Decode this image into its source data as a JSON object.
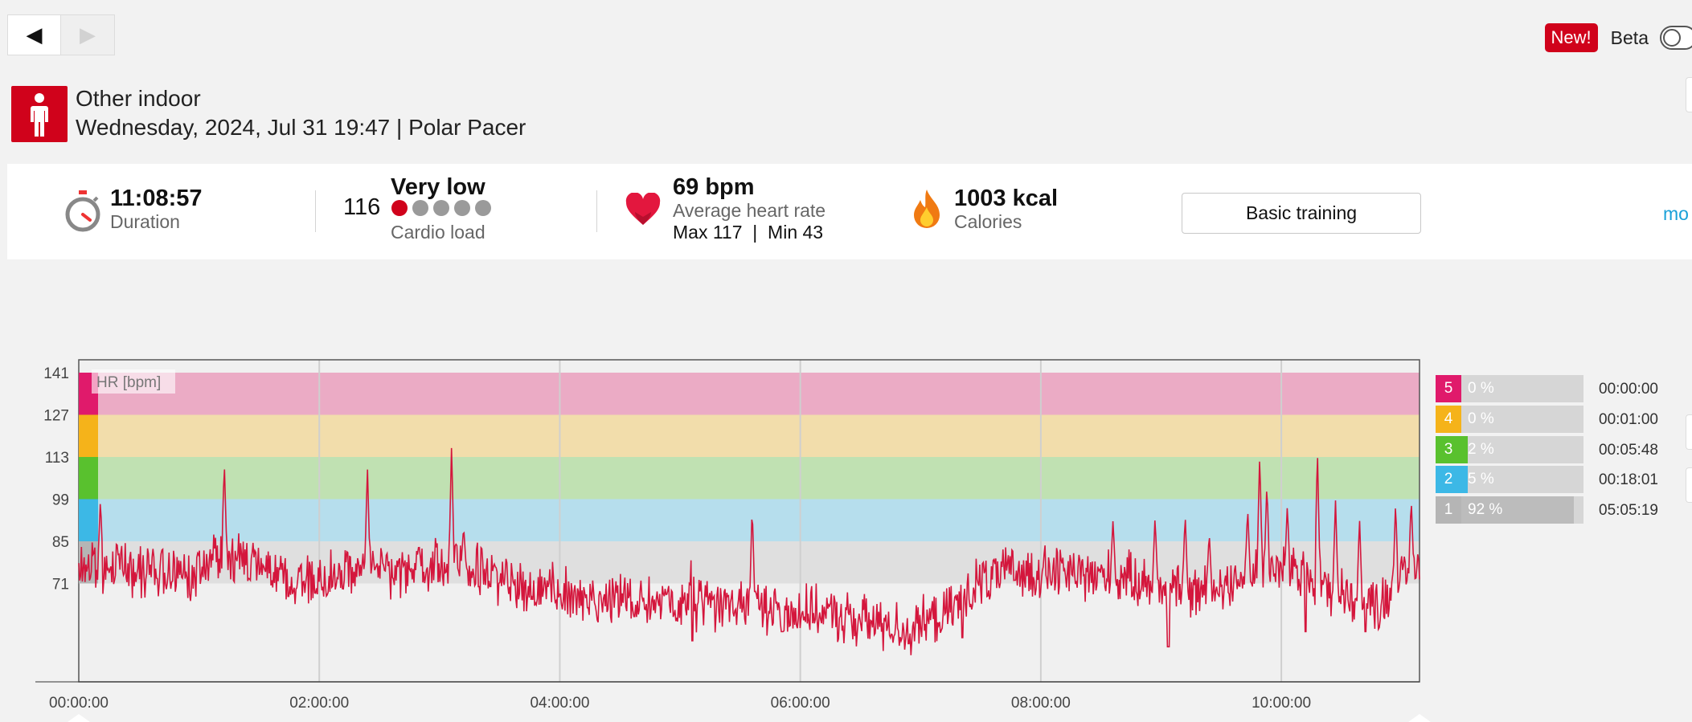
{
  "nav": {
    "back_glyph": "◀",
    "forward_glyph": "▶",
    "back_icon": "back-arrow-icon",
    "forward_icon": "forward-arrow-icon"
  },
  "beta": {
    "new_label": "New!",
    "beta_label": "Beta",
    "toggle_on": false
  },
  "session": {
    "sport": "Other indoor",
    "subtitle": "Wednesday, 2024, Jul 31 19:47 | Polar Pacer",
    "sport_icon": "person-standing-icon"
  },
  "summary": {
    "duration_value": "11:08:57",
    "duration_label": "Duration",
    "cardio_number": "116",
    "cardio_level": "Very low",
    "cardio_label": "Cardio load",
    "cardio_dots": 5,
    "cardio_dots_filled": 1,
    "hr_avg": "69 bpm",
    "hr_label": "Average heart rate",
    "hr_maxmin": "Max 117  |  Min 43",
    "calories_value": "1003 kcal",
    "calories_label": "Calories",
    "training_button": "Basic training",
    "more_link": "mo"
  },
  "colors": {
    "accent": "#d0021b",
    "zone5": "#e01a6b",
    "zone4": "#f5b31a",
    "zone3": "#59c12e",
    "zone2": "#3cb8e6",
    "zone1": "#b5b5b5",
    "hr_line": "#d4163c"
  },
  "chart_data": {
    "type": "line",
    "series_label": "HR [bpm]",
    "ylim": [
      43,
      141
    ],
    "y_ticks": [
      "141",
      "127",
      "113",
      "99",
      "85",
      "71"
    ],
    "y_tick_values": [
      141,
      127,
      113,
      99,
      85,
      71
    ],
    "x_ticks": [
      "00:00:00",
      "02:00:00",
      "04:00:00",
      "06:00:00",
      "08:00:00",
      "10:00:00"
    ],
    "x_tick_hours": [
      0,
      2,
      4,
      6,
      8,
      10
    ],
    "duration_hours": 11.149,
    "zone_bands": [
      {
        "zone": 5,
        "low": 127,
        "high": 141
      },
      {
        "zone": 4,
        "low": 113,
        "high": 127
      },
      {
        "zone": 3,
        "low": 99,
        "high": 113
      },
      {
        "zone": 2,
        "low": 85,
        "high": 99
      },
      {
        "zone": 1,
        "low": 71,
        "high": 85
      }
    ],
    "hr_trend": [
      [
        0.0,
        77
      ],
      [
        0.3,
        76
      ],
      [
        0.6,
        75
      ],
      [
        0.9,
        74
      ],
      [
        1.2,
        80
      ],
      [
        1.5,
        76
      ],
      [
        1.8,
        72
      ],
      [
        2.1,
        73
      ],
      [
        2.4,
        76
      ],
      [
        2.7,
        74
      ],
      [
        3.0,
        78
      ],
      [
        3.3,
        75
      ],
      [
        3.6,
        71
      ],
      [
        3.9,
        69
      ],
      [
        4.2,
        67
      ],
      [
        4.5,
        66
      ],
      [
        4.8,
        65
      ],
      [
        5.1,
        64
      ],
      [
        5.4,
        65
      ],
      [
        5.7,
        63
      ],
      [
        6.0,
        62
      ],
      [
        6.3,
        60
      ],
      [
        6.6,
        58
      ],
      [
        6.9,
        56
      ],
      [
        7.2,
        60
      ],
      [
        7.5,
        72
      ],
      [
        7.8,
        75
      ],
      [
        8.1,
        75
      ],
      [
        8.4,
        74
      ],
      [
        8.7,
        73
      ],
      [
        9.0,
        70
      ],
      [
        9.3,
        68
      ],
      [
        9.6,
        72
      ],
      [
        9.9,
        76
      ],
      [
        10.2,
        74
      ],
      [
        10.5,
        67
      ],
      [
        10.8,
        64
      ],
      [
        11.149,
        78
      ]
    ],
    "hr_spikes": [
      [
        0.18,
        99
      ],
      [
        1.21,
        111
      ],
      [
        2.4,
        110
      ],
      [
        3.1,
        117
      ],
      [
        3.2,
        90
      ],
      [
        5.1,
        88
      ],
      [
        5.6,
        97
      ],
      [
        8.6,
        92
      ],
      [
        8.95,
        93
      ],
      [
        9.2,
        94
      ],
      [
        9.4,
        88
      ],
      [
        9.72,
        96
      ],
      [
        9.82,
        114
      ],
      [
        9.88,
        104
      ],
      [
        10.05,
        97
      ],
      [
        10.3,
        116
      ],
      [
        10.45,
        99
      ],
      [
        10.65,
        93
      ],
      [
        10.95,
        98
      ],
      [
        11.08,
        99
      ]
    ],
    "hr_dips": [
      [
        5.1,
        52
      ],
      [
        5.85,
        55
      ],
      [
        6.9,
        51
      ],
      [
        7.35,
        53
      ],
      [
        9.06,
        50
      ],
      [
        10.2,
        55
      ],
      [
        10.7,
        55
      ]
    ],
    "zones": [
      {
        "zone": "5",
        "percent": "0 %",
        "fraction": 0.0,
        "time": "00:00:00"
      },
      {
        "zone": "4",
        "percent": "0 %",
        "fraction": 0.0,
        "time": "00:01:00"
      },
      {
        "zone": "3",
        "percent": "2 %",
        "fraction": 0.02,
        "time": "00:05:48"
      },
      {
        "zone": "2",
        "percent": "5 %",
        "fraction": 0.05,
        "time": "00:18:01"
      },
      {
        "zone": "1",
        "percent": "92 %",
        "fraction": 0.92,
        "time": "05:05:19"
      }
    ]
  }
}
